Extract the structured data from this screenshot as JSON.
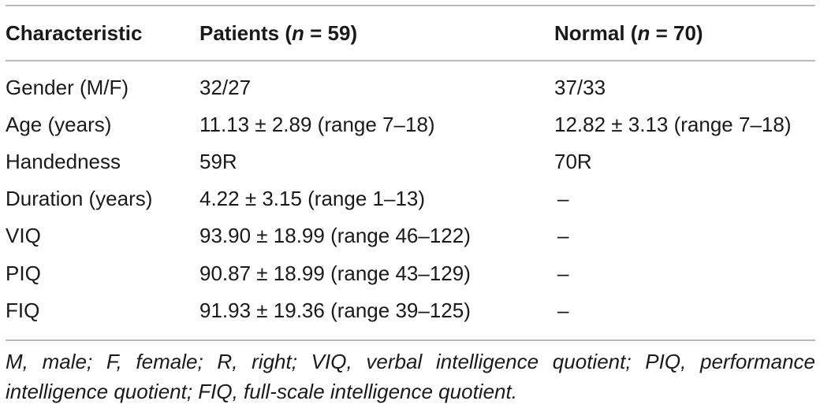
{
  "table": {
    "headers": {
      "characteristic": "Characteristic",
      "patients_prefix": "Patients (",
      "patients_n": "n",
      "patients_suffix": " = 59)",
      "normal_prefix": "Normal (",
      "normal_n": "n",
      "normal_suffix": " = 70)"
    },
    "rows": [
      {
        "label": "Gender (M/F)",
        "patients": "32/27",
        "normal": "37/33"
      },
      {
        "label": "Age (years)",
        "patients": "11.13 ± 2.89 (range 7–18)",
        "normal": "12.82 ± 3.13 (range 7–18)"
      },
      {
        "label": "Handedness",
        "patients": "59R",
        "normal": "70R"
      },
      {
        "label": "Duration (years)",
        "patients": "4.22 ± 3.15 (range 1–13)",
        "normal": "–"
      },
      {
        "label": "VIQ",
        "patients": "93.90 ± 18.99 (range 46–122)",
        "normal": "–"
      },
      {
        "label": "PIQ",
        "patients": "90.87 ± 18.99 (range 43–129)",
        "normal": "–"
      },
      {
        "label": "FIQ",
        "patients": "91.93 ± 19.36 (range 39–125)",
        "normal": "–"
      }
    ],
    "footnote": "M, male; F, female; R, right; VIQ, verbal intelligence quotient; PIQ, performance intelligence quotient; FIQ, full-scale intelligence quotient."
  }
}
